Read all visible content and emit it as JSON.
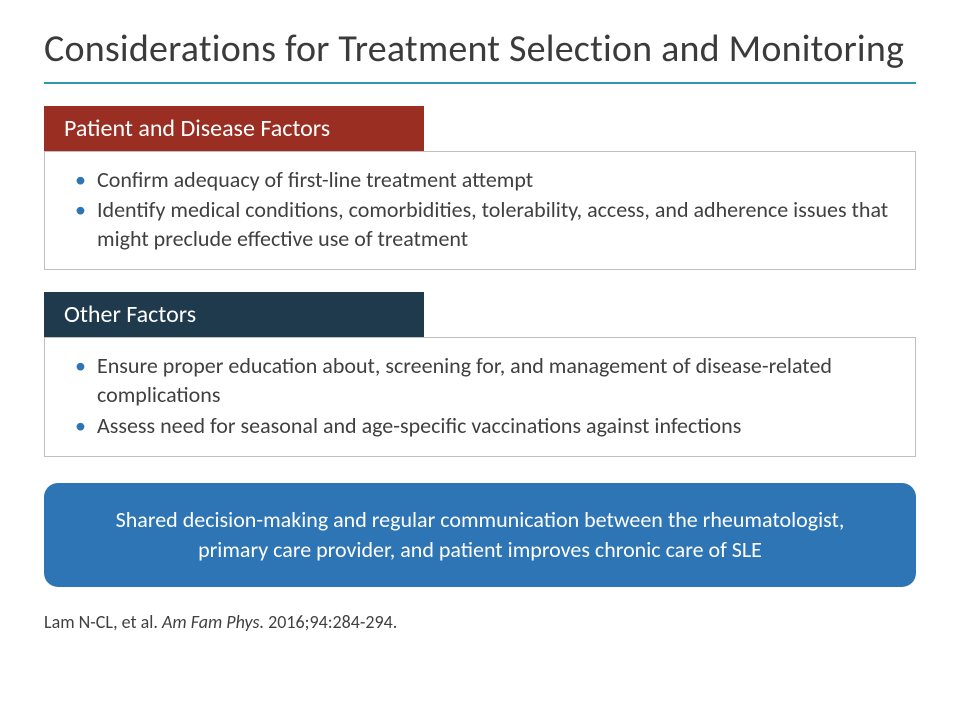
{
  "colors": {
    "title_rule": "#2e9aa8",
    "section_border": "#bfbfbf",
    "bullet": "#2e75b6",
    "callout_bg": "#2e75b6"
  },
  "title": "Considerations for Treatment Selection and Monitoring",
  "sections": [
    {
      "header": "Patient and Disease Factors",
      "header_bg": "#9a2e22",
      "bullets": [
        "Confirm adequacy of first-line treatment attempt",
        "Identify medical conditions, comorbidities, tolerability, access, and adherence issues that might preclude effective use of treatment"
      ]
    },
    {
      "header": "Other Factors",
      "header_bg": "#1f3a4d",
      "bullets": [
        "Ensure proper education about, screening for, and management of disease-related complications",
        "Assess need for seasonal and age-specific vaccinations against infections"
      ]
    }
  ],
  "callout": "Shared decision-making and regular communication between the rheumatologist, primary care provider, and patient improves chronic care of SLE",
  "citation": {
    "prefix": "Lam N-CL, et al. ",
    "journal": "Am Fam Phys.",
    "suffix": " 2016;94:284-294."
  }
}
